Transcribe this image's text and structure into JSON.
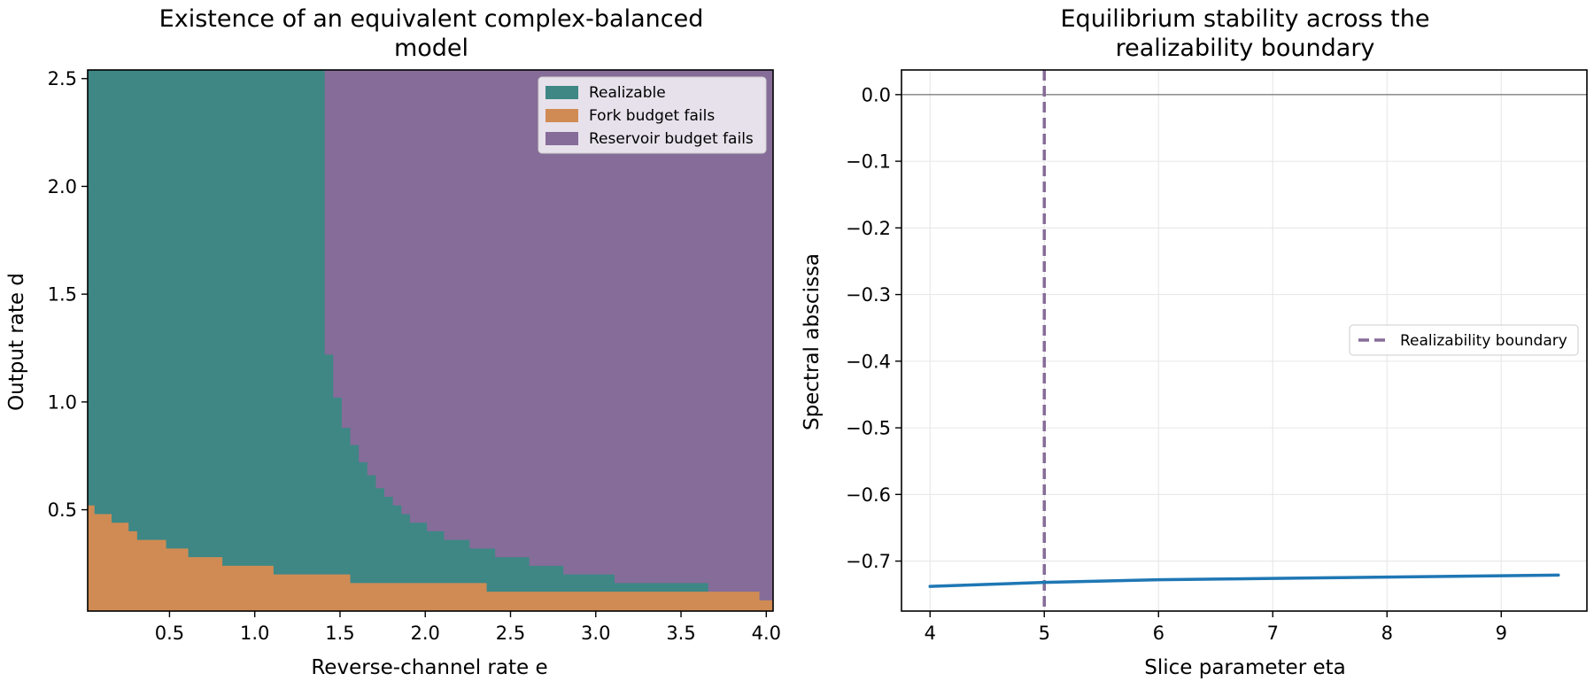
{
  "chart_data": [
    {
      "type": "heatmap",
      "title_lines": [
        "Existence of an equivalent complex-balanced",
        "model"
      ],
      "xlabel": "Reverse-channel rate e",
      "ylabel": "Output rate d",
      "xlim": [
        0.02,
        4.04
      ],
      "ylim": [
        0.03,
        2.54
      ],
      "xticks": [
        {
          "v": 0.5,
          "label": "0.5"
        },
        {
          "v": 1.0,
          "label": "1.0"
        },
        {
          "v": 1.5,
          "label": "1.5"
        },
        {
          "v": 2.0,
          "label": "2.0"
        },
        {
          "v": 2.5,
          "label": "2.5"
        },
        {
          "v": 3.0,
          "label": "3.0"
        },
        {
          "v": 3.5,
          "label": "3.5"
        },
        {
          "v": 4.0,
          "label": "4.0"
        }
      ],
      "yticks": [
        {
          "v": 0.5,
          "label": "0.5"
        },
        {
          "v": 1.0,
          "label": "1.0"
        },
        {
          "v": 1.5,
          "label": "1.5"
        },
        {
          "v": 2.0,
          "label": "2.0"
        },
        {
          "v": 2.5,
          "label": "2.5"
        }
      ],
      "legend_position": "upper right",
      "categories": [
        {
          "name": "Realizable",
          "color": "#3e8785"
        },
        {
          "name": "Fork budget fails",
          "color": "#d08b54"
        },
        {
          "name": "Reservoir budget fails",
          "color": "#866c99"
        }
      ],
      "fork_boundary": [
        [
          0.02,
          0.52
        ],
        [
          0.06,
          0.48
        ],
        [
          0.16,
          0.44
        ],
        [
          0.26,
          0.4
        ],
        [
          0.31,
          0.36
        ],
        [
          0.48,
          0.32
        ],
        [
          0.61,
          0.28
        ],
        [
          0.81,
          0.24
        ],
        [
          1.11,
          0.2
        ],
        [
          1.56,
          0.16
        ],
        [
          2.36,
          0.12
        ],
        [
          3.96,
          0.08
        ],
        [
          4.04,
          0.08
        ]
      ],
      "reservoir_boundary": [
        [
          1.41,
          2.54
        ],
        [
          1.41,
          1.22
        ],
        [
          1.46,
          1.02
        ],
        [
          1.51,
          0.88
        ],
        [
          1.56,
          0.8
        ],
        [
          1.61,
          0.72
        ],
        [
          1.66,
          0.66
        ],
        [
          1.71,
          0.6
        ],
        [
          1.76,
          0.56
        ],
        [
          1.81,
          0.52
        ],
        [
          1.86,
          0.48
        ],
        [
          1.91,
          0.44
        ],
        [
          2.01,
          0.4
        ],
        [
          2.11,
          0.36
        ],
        [
          2.26,
          0.32
        ],
        [
          2.41,
          0.28
        ],
        [
          2.61,
          0.24
        ],
        [
          2.81,
          0.2
        ],
        [
          3.11,
          0.16
        ],
        [
          3.66,
          0.12
        ],
        [
          3.96,
          0.12
        ],
        [
          3.96,
          0.08
        ],
        [
          4.04,
          0.08
        ]
      ]
    },
    {
      "type": "line",
      "title_lines": [
        "Equilibrium stability across the",
        "realizability boundary"
      ],
      "xlabel": "Slice parameter eta",
      "ylabel": "Spectral abscissa",
      "xlim": [
        3.75,
        9.75
      ],
      "ylim": [
        -0.775,
        0.037
      ],
      "grid": true,
      "xticks": [
        {
          "v": 4,
          "label": "4"
        },
        {
          "v": 5,
          "label": "5"
        },
        {
          "v": 6,
          "label": "6"
        },
        {
          "v": 7,
          "label": "7"
        },
        {
          "v": 8,
          "label": "8"
        },
        {
          "v": 9,
          "label": "9"
        }
      ],
      "yticks": [
        {
          "v": 0.0,
          "label": "0.0"
        },
        {
          "v": -0.1,
          "label": "−0.1"
        },
        {
          "v": -0.2,
          "label": "−0.2"
        },
        {
          "v": -0.3,
          "label": "−0.3"
        },
        {
          "v": -0.4,
          "label": "−0.4"
        },
        {
          "v": -0.5,
          "label": "−0.5"
        },
        {
          "v": -0.6,
          "label": "−0.6"
        },
        {
          "v": -0.7,
          "label": "−0.7"
        }
      ],
      "hline": 0.0,
      "vline": {
        "x": 5.0,
        "label": "Realizability boundary",
        "color": "#866c99"
      },
      "legend_position": "center right",
      "series": [
        {
          "color": "#1f77b4",
          "x": [
            4.0,
            4.5,
            5.0,
            5.5,
            6.0,
            6.5,
            7.0,
            7.5,
            8.0,
            8.5,
            9.0,
            9.5
          ],
          "y": [
            -0.738,
            -0.735,
            -0.732,
            -0.73,
            -0.728,
            -0.727,
            -0.726,
            -0.725,
            -0.724,
            -0.723,
            -0.722,
            -0.721
          ]
        }
      ]
    }
  ]
}
